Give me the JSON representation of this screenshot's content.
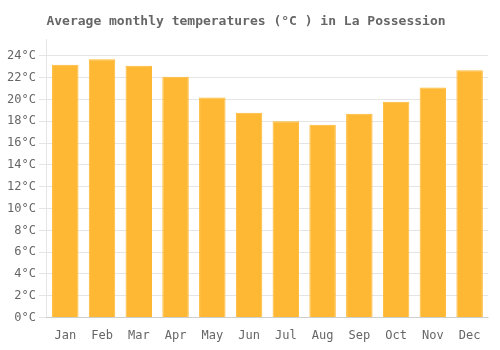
{
  "chart_data": {
    "type": "bar",
    "title": "Average monthly temperatures (°C ) in La Possession",
    "categories": [
      "Jan",
      "Feb",
      "Mar",
      "Apr",
      "May",
      "Jun",
      "Jul",
      "Aug",
      "Sep",
      "Oct",
      "Nov",
      "Dec"
    ],
    "values": [
      23.2,
      23.7,
      23.1,
      22.1,
      20.2,
      18.8,
      18.0,
      17.7,
      18.7,
      19.8,
      21.1,
      22.7
    ],
    "color": "#FFB833",
    "ylim": [
      0,
      25.5
    ],
    "yticks": [
      {
        "value": 0,
        "label": "0°C"
      },
      {
        "value": 2,
        "label": "2°C"
      },
      {
        "value": 4,
        "label": "4°C"
      },
      {
        "value": 6,
        "label": "6°C"
      },
      {
        "value": 8,
        "label": "8°C"
      },
      {
        "value": 10,
        "label": "10°C"
      },
      {
        "value": 12,
        "label": "12°C"
      },
      {
        "value": 14,
        "label": "14°C"
      },
      {
        "value": 16,
        "label": "16°C"
      },
      {
        "value": 18,
        "label": "18°C"
      },
      {
        "value": 20,
        "label": "20°C"
      },
      {
        "value": 22,
        "label": "22°C"
      },
      {
        "value": 24,
        "label": "24°C"
      }
    ],
    "grid": true
  }
}
